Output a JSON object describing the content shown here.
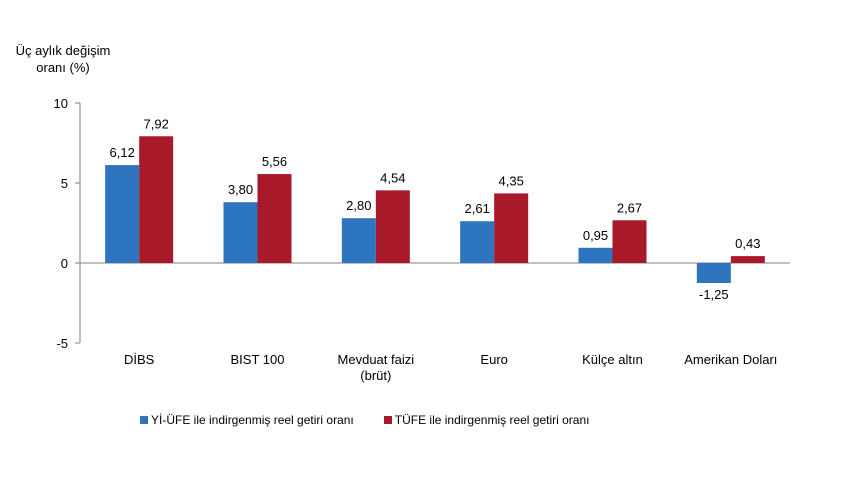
{
  "chart_data": {
    "type": "bar",
    "ylabel_line1": "Üç aylık değişim",
    "ylabel_line2": "oranı (%)",
    "ylim": [
      -5,
      10
    ],
    "yticks": [
      "10",
      "5",
      "0",
      "-5"
    ],
    "categories": [
      [
        "DİBS"
      ],
      [
        "BIST 100"
      ],
      [
        "Mevduat faizi",
        "(brüt)"
      ],
      [
        "Euro"
      ],
      [
        "Külçe altın"
      ],
      [
        "Amerikan Doları"
      ]
    ],
    "series": [
      {
        "name": "Yİ-ÜFE ile indirgenmiş reel getiri oranı",
        "color": "#2e75c0",
        "values": [
          6.12,
          3.8,
          2.8,
          2.61,
          0.95,
          -1.25
        ],
        "labels": [
          "6,12",
          "3,80",
          "2,80",
          "2,61",
          "0,95",
          "-1,25"
        ]
      },
      {
        "name": "TÜFE ile indirgenmiş reel getiri oranı",
        "color": "#a8192a",
        "values": [
          7.92,
          5.56,
          4.54,
          4.35,
          2.67,
          0.43
        ],
        "labels": [
          "7,92",
          "5,56",
          "4,54",
          "4,35",
          "2,67",
          "0,43"
        ]
      }
    ],
    "grid": false,
    "legend": "bottom"
  }
}
